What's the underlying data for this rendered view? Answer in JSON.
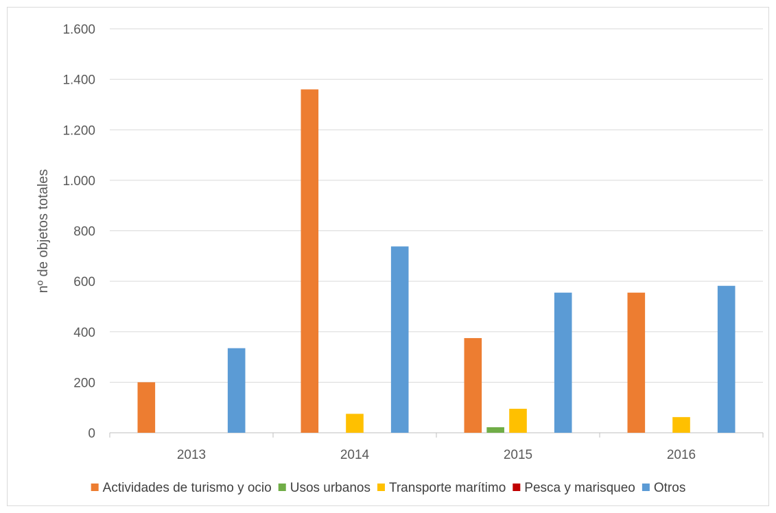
{
  "chart_data": {
    "type": "bar",
    "title": "",
    "xlabel": "",
    "ylabel": "nº de objetos totales",
    "ylim": [
      0,
      1600
    ],
    "yticks": [
      0,
      200,
      400,
      600,
      800,
      1000,
      1200,
      1400,
      1600
    ],
    "ytick_labels": [
      "0",
      "200",
      "400",
      "600",
      "800",
      "1.000",
      "1.200",
      "1.400",
      "1.600"
    ],
    "categories": [
      "2013",
      "2014",
      "2015",
      "2016"
    ],
    "grid": true,
    "legend_position": "bottom",
    "series": [
      {
        "name": "Actividades de turismo y ocio",
        "color": "#ED7D31",
        "values": [
          200,
          1360,
          375,
          555
        ]
      },
      {
        "name": "Usos urbanos",
        "color": "#70AD47",
        "values": [
          0,
          0,
          22,
          0
        ]
      },
      {
        "name": "Transporte marítimo",
        "color": "#FFC000",
        "values": [
          0,
          75,
          95,
          62
        ]
      },
      {
        "name": "Pesca y marisqueo",
        "color": "#C00000",
        "values": [
          0,
          0,
          0,
          0
        ]
      },
      {
        "name": "Otros",
        "color": "#5B9BD5",
        "values": [
          335,
          738,
          555,
          582
        ]
      }
    ]
  }
}
